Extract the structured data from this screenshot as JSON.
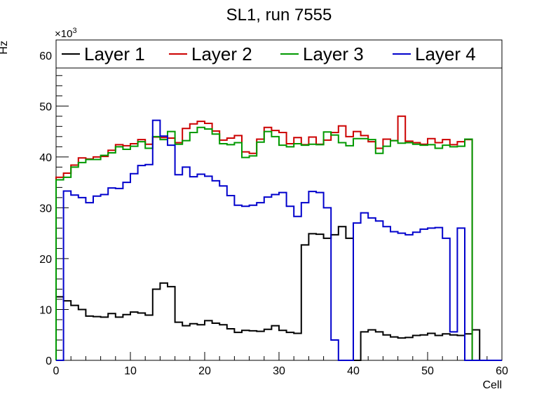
{
  "chart_data": {
    "type": "line",
    "title": "SL1, run 7555",
    "xlabel": "Cell",
    "ylabel": "Hz",
    "y_multiplier": "×10",
    "y_multiplier_exp": "3",
    "xlim": [
      0,
      60
    ],
    "ylim": [
      0,
      63
    ],
    "x_ticks": [
      "0",
      "10",
      "20",
      "30",
      "40",
      "50",
      "60"
    ],
    "y_ticks": [
      "0",
      "10",
      "20",
      "30",
      "40",
      "50",
      "60"
    ],
    "grid": false,
    "legend_position": "top",
    "series": [
      {
        "name": "Layer 1",
        "color": "#000000",
        "values": [
          12.5,
          11.7,
          10.8,
          10.0,
          8.7,
          8.6,
          8.5,
          9.2,
          8.5,
          9.0,
          9.5,
          9.3,
          8.9,
          14.0,
          15.2,
          14.5,
          7.5,
          6.8,
          7.2,
          7.0,
          7.8,
          7.3,
          7.0,
          6.2,
          5.5,
          5.9,
          5.8,
          5.7,
          6.1,
          6.8,
          5.9,
          5.5,
          5.3,
          22.7,
          24.9,
          24.8,
          24.0,
          24.7,
          26.3,
          24.0,
          0,
          5.6,
          6.0,
          5.6,
          5.0,
          4.6,
          4.4,
          4.5,
          4.9,
          5.0,
          5.3,
          4.9,
          5.2,
          5.0,
          4.9,
          5.2,
          6.0,
          0,
          0,
          0
        ]
      },
      {
        "name": "Layer 2",
        "color": "#cc0000",
        "values": [
          36.0,
          36.8,
          38.4,
          39.8,
          39.6,
          40.0,
          40.1,
          41.3,
          42.4,
          42.2,
          42.6,
          43.4,
          42.5,
          43.9,
          43.8,
          43.7,
          42.8,
          45.6,
          46.5,
          47.0,
          46.6,
          45.1,
          43.3,
          43.7,
          44.2,
          41.0,
          40.7,
          43.5,
          45.8,
          45.2,
          44.8,
          42.6,
          43.8,
          42.4,
          43.9,
          42.5,
          43.3,
          44.8,
          46.1,
          44.0,
          45.0,
          44.2,
          43.0,
          41.7,
          43.5,
          43.2,
          48.0,
          43.1,
          42.8,
          42.5,
          43.6,
          42.8,
          43.4,
          42.4,
          43.0,
          43.4,
          0,
          0,
          0,
          0
        ]
      },
      {
        "name": "Layer 3",
        "color": "#009900",
        "values": [
          35.5,
          36.0,
          38.0,
          38.9,
          39.5,
          39.5,
          40.3,
          40.8,
          42.0,
          41.5,
          42.1,
          43.0,
          41.7,
          44.0,
          43.4,
          45.0,
          42.5,
          43.2,
          44.8,
          45.8,
          45.5,
          44.5,
          42.6,
          42.4,
          42.8,
          39.9,
          40.2,
          42.9,
          45.0,
          44.0,
          42.3,
          42.0,
          42.6,
          42.3,
          42.5,
          42.4,
          44.9,
          44.3,
          42.8,
          42.2,
          43.6,
          43.6,
          43.4,
          40.7,
          42.1,
          43.2,
          42.7,
          42.8,
          42.5,
          42.3,
          42.4,
          41.7,
          42.3,
          42.0,
          42.1,
          43.5,
          0,
          0,
          0,
          0
        ]
      },
      {
        "name": "Layer 4",
        "color": "#0000cc",
        "values": [
          0,
          33.3,
          32.5,
          32.0,
          31.0,
          32.3,
          32.6,
          33.9,
          33.8,
          35.0,
          36.7,
          38.3,
          38.5,
          47.2,
          44.1,
          42.3,
          36.5,
          38.0,
          36.1,
          36.6,
          36.2,
          35.3,
          34.3,
          32.4,
          30.5,
          30.3,
          30.5,
          31.0,
          32.1,
          32.6,
          33.0,
          30.3,
          28.3,
          31.0,
          33.2,
          33.0,
          30.0,
          4.0,
          0,
          0,
          27.0,
          29.0,
          28.0,
          27.4,
          26.3,
          25.3,
          25.0,
          24.7,
          25.2,
          25.8,
          26.0,
          26.1,
          24.0,
          5.6,
          26.0,
          0,
          0,
          0,
          0,
          0
        ]
      }
    ]
  }
}
